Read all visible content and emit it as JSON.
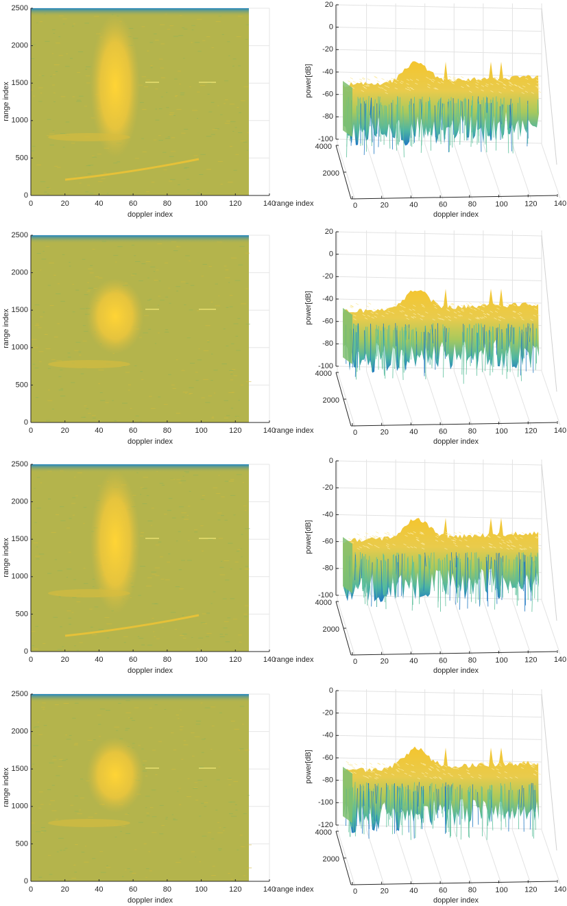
{
  "chart_data": [
    {
      "type": "heatmap",
      "xlabel": "doppler index",
      "ylabel": "range index",
      "xlim": [
        0,
        140
      ],
      "ylim": [
        0,
        2500
      ],
      "xticks": [
        0,
        20,
        40,
        60,
        80,
        100,
        120,
        140
      ],
      "yticks": [
        0,
        500,
        1000,
        1500,
        2000,
        2500
      ],
      "grid": true
    },
    {
      "type": "surface3d",
      "xlabel": "doppler index",
      "ylabel": "range index",
      "zlabel": "power[dB]",
      "xlim": [
        0,
        140
      ],
      "xticks": [
        0,
        20,
        40,
        60,
        80,
        100,
        120,
        140
      ],
      "ylim": [
        0,
        4000
      ],
      "yticks": [
        2000,
        4000
      ],
      "zlim": [
        -100,
        20
      ],
      "zticks": [
        -100,
        -80,
        -60,
        -40,
        -20,
        0,
        20
      ],
      "grid": true
    },
    {
      "type": "heatmap",
      "xlabel": "doppler index",
      "ylabel": "range index",
      "xlim": [
        0,
        140
      ],
      "ylim": [
        0,
        2500
      ],
      "xticks": [
        0,
        20,
        40,
        60,
        80,
        100,
        120,
        140
      ],
      "yticks": [
        0,
        500,
        1000,
        1500,
        2000,
        2500
      ],
      "grid": true
    },
    {
      "type": "surface3d",
      "xlabel": "doppler index",
      "ylabel": "range index",
      "zlabel": "power[dB]",
      "xlim": [
        0,
        140
      ],
      "xticks": [
        0,
        20,
        40,
        60,
        80,
        100,
        120,
        140
      ],
      "ylim": [
        0,
        4000
      ],
      "yticks": [
        2000,
        4000
      ],
      "zlim": [
        -100,
        20
      ],
      "zticks": [
        -100,
        -80,
        -60,
        -40,
        -20,
        0,
        20
      ],
      "grid": true
    },
    {
      "type": "heatmap",
      "xlabel": "doppler index",
      "ylabel": "range index",
      "xlim": [
        0,
        140
      ],
      "ylim": [
        0,
        2500
      ],
      "xticks": [
        0,
        20,
        40,
        60,
        80,
        100,
        120,
        140
      ],
      "yticks": [
        0,
        500,
        1000,
        1500,
        2000,
        2500
      ],
      "grid": true
    },
    {
      "type": "surface3d",
      "xlabel": "doppler index",
      "ylabel": "range index",
      "zlabel": "power[dB]",
      "xlim": [
        0,
        140
      ],
      "xticks": [
        0,
        20,
        40,
        60,
        80,
        100,
        120,
        140
      ],
      "ylim": [
        0,
        4000
      ],
      "yticks": [
        2000,
        4000
      ],
      "zlim": [
        -100,
        0
      ],
      "zticks": [
        -100,
        -80,
        -60,
        -40,
        -20,
        0
      ],
      "grid": true
    },
    {
      "type": "heatmap",
      "xlabel": "doppler index",
      "ylabel": "range index",
      "xlim": [
        0,
        140
      ],
      "ylim": [
        0,
        2500
      ],
      "xticks": [
        0,
        20,
        40,
        60,
        80,
        100,
        120,
        140
      ],
      "yticks": [
        0,
        500,
        1000,
        1500,
        2000,
        2500
      ],
      "grid": true
    },
    {
      "type": "surface3d",
      "xlabel": "doppler index",
      "ylabel": "range index",
      "zlabel": "power[dB]",
      "xlim": [
        0,
        140
      ],
      "xticks": [
        0,
        20,
        40,
        60,
        80,
        100,
        120,
        140
      ],
      "ylim": [
        0,
        4000
      ],
      "yticks": [
        2000,
        4000
      ],
      "zlim": [
        -120,
        0
      ],
      "zticks": [
        -120,
        -100,
        -80,
        -60,
        -40,
        -20,
        0
      ],
      "grid": true
    }
  ]
}
